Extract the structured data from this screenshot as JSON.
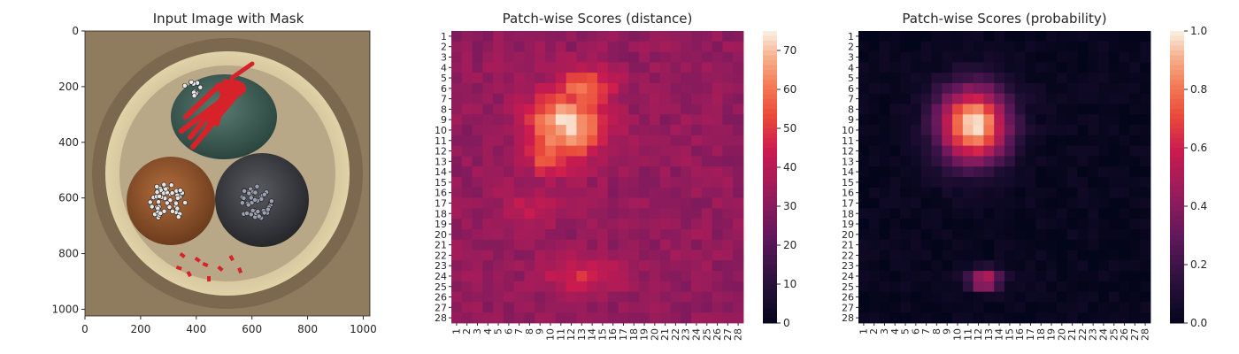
{
  "chart_data": [
    {
      "type": "image",
      "title": "Input Image with Mask",
      "xlim": [
        0,
        1024
      ],
      "ylim": [
        1024,
        0
      ],
      "xticks": [
        0,
        200,
        400,
        600,
        800,
        1000
      ],
      "yticks": [
        0,
        200,
        400,
        600,
        800,
        1000
      ],
      "image_description_objects": [
        {
          "kind": "cable",
          "center": [
            500,
            300
          ],
          "color": "#3e5b52",
          "mask": true
        },
        {
          "kind": "cable",
          "center": [
            310,
            610
          ],
          "color": "#93532f"
        },
        {
          "kind": "cable",
          "center": [
            640,
            610
          ],
          "color": "#3c3d44"
        }
      ],
      "mask_color": "#d8222a"
    },
    {
      "type": "heatmap",
      "title": "Patch-wise Scores (distance)",
      "rows": 28,
      "cols": 28,
      "tick_labels": [
        "1",
        "2",
        "3",
        "4",
        "5",
        "6",
        "7",
        "8",
        "9",
        "10",
        "11",
        "12",
        "13",
        "14",
        "15",
        "16",
        "17",
        "18",
        "19",
        "20",
        "21",
        "22",
        "23",
        "24",
        "25",
        "26",
        "27",
        "28"
      ],
      "colorbar": {
        "min": 0,
        "max": 75,
        "ticks": [
          0,
          10,
          20,
          30,
          40,
          50,
          60,
          70
        ]
      },
      "background_level": 33,
      "hotspots": [
        {
          "row": 9.5,
          "col": 11.5,
          "rx": 3.6,
          "ry": 3.3,
          "peak": 72
        },
        {
          "row": 6.0,
          "col": 13.0,
          "rx": 2.8,
          "ry": 1.8,
          "peak": 62
        },
        {
          "row": 12.5,
          "col": 10.0,
          "rx": 2.5,
          "ry": 1.8,
          "peak": 58
        },
        {
          "row": 17.5,
          "col": 8.0,
          "rx": 3.0,
          "ry": 2.0,
          "peak": 42
        },
        {
          "row": 24.0,
          "col": 13.0,
          "rx": 3.5,
          "ry": 1.6,
          "peak": 49
        }
      ]
    },
    {
      "type": "heatmap",
      "title": "Patch-wise Scores (probability)",
      "rows": 28,
      "cols": 28,
      "tick_labels": [
        "1",
        "2",
        "3",
        "4",
        "5",
        "6",
        "7",
        "8",
        "9",
        "10",
        "11",
        "12",
        "13",
        "14",
        "15",
        "16",
        "17",
        "18",
        "19",
        "20",
        "21",
        "22",
        "23",
        "24",
        "25",
        "26",
        "27",
        "28"
      ],
      "colorbar": {
        "min": 0.0,
        "max": 1.0,
        "ticks": [
          "0.0",
          "0.2",
          "0.4",
          "0.6",
          "0.8",
          "1.0"
        ]
      },
      "background_level": 0.02,
      "hotspots": [
        {
          "row": 9.5,
          "col": 11.5,
          "rx": 3.3,
          "ry": 3.6,
          "peak": 1.0
        },
        {
          "row": 24.4,
          "col": 12.6,
          "rx": 1.6,
          "ry": 1.0,
          "peak": 0.6
        }
      ]
    }
  ]
}
